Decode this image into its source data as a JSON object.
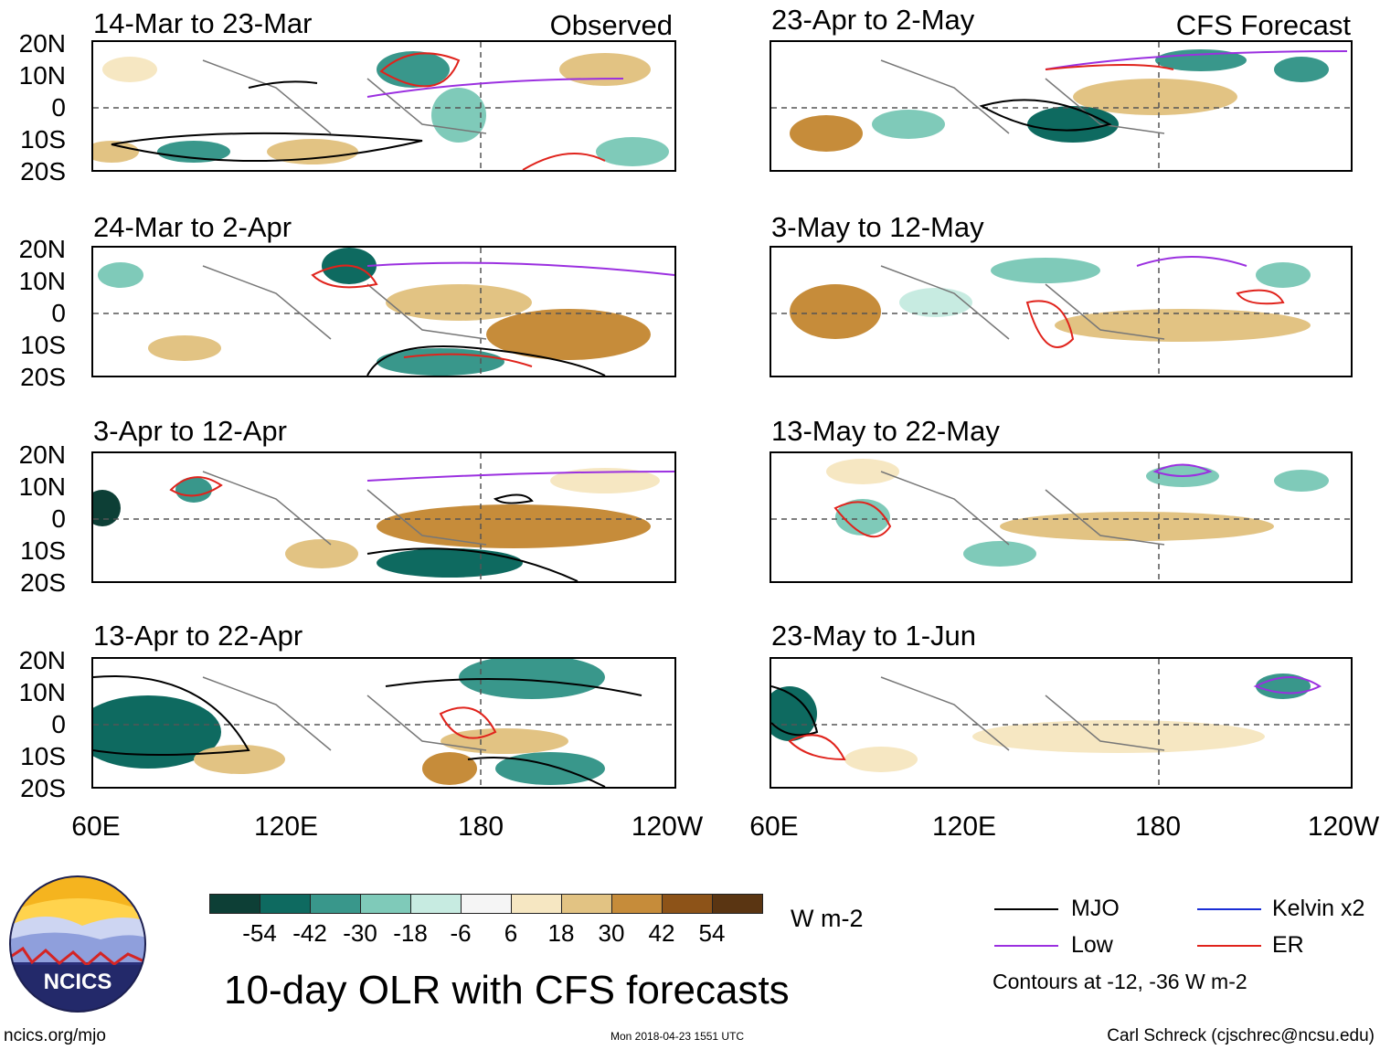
{
  "observed_label": "Observed",
  "forecast_label": "CFS Forecast",
  "panels_left": [
    {
      "title": "14-Mar to 23-Mar"
    },
    {
      "title": "24-Mar to 2-Apr"
    },
    {
      "title": "3-Apr to 12-Apr"
    },
    {
      "title": "13-Apr to 22-Apr"
    }
  ],
  "panels_right": [
    {
      "title": "23-Apr to 2-May"
    },
    {
      "title": "3-May to 12-May"
    },
    {
      "title": "13-May to 22-May"
    },
    {
      "title": "23-May to 1-Jun"
    }
  ],
  "lat_labels": [
    "20N",
    "10N",
    "0",
    "10S",
    "20S"
  ],
  "lon_labels": [
    "60E",
    "120E",
    "180",
    "120W"
  ],
  "colorbar": {
    "colors": [
      "#0d3f36",
      "#0e6a60",
      "#39978b",
      "#7fcab9",
      "#c7ebe1",
      "#f5f5f5",
      "#f6e7c2",
      "#e2c383",
      "#c68c3a",
      "#8d5318",
      "#5a3512"
    ],
    "labels": [
      "-54",
      "-42",
      "-30",
      "-18",
      "-6",
      "6",
      "18",
      "30",
      "42",
      "54"
    ],
    "units": "W m-2"
  },
  "legend": {
    "mjo": {
      "label": "MJO",
      "color": "#000000"
    },
    "kelvin": {
      "label": "Kelvin x2",
      "color": "#1a2ed6"
    },
    "low": {
      "label": "Low",
      "color": "#9b30e0"
    },
    "er": {
      "label": "ER",
      "color": "#e0231c"
    },
    "contours_note": "Contours at -12, -36 W m-2"
  },
  "main_title": "10-day OLR with CFS forecasts",
  "logo_text": "NCICS",
  "url": "ncics.org/mjo",
  "timestamp": "Mon 2018-04-23 1551 UTC",
  "credit": "Carl Schreck (cjschrec@ncsu.edu)"
}
